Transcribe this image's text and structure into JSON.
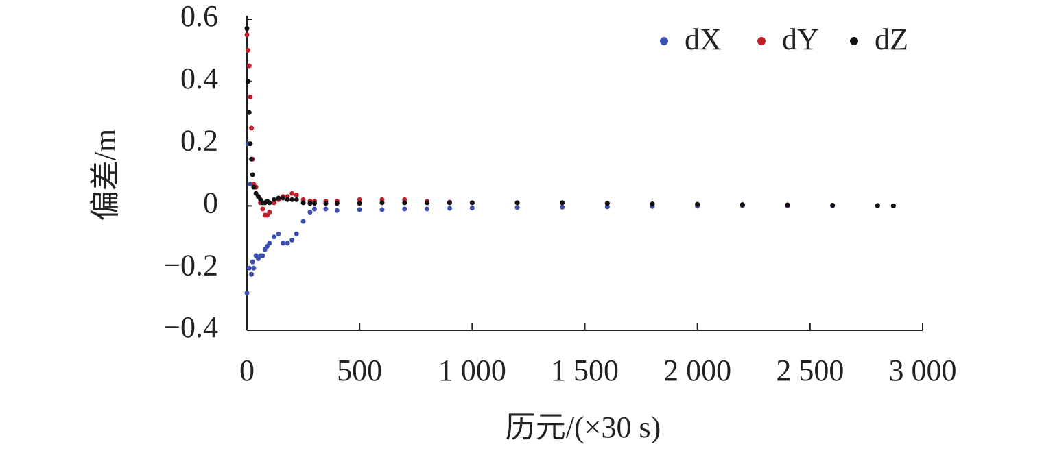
{
  "chart_data": {
    "type": "scatter",
    "x_label": "历元/(×30 s)",
    "y_label": "偏差/m",
    "xlim": [
      0,
      3000
    ],
    "ylim": [
      -0.4,
      0.6
    ],
    "xticks": [
      0,
      500,
      {
        "value": 1000,
        "label": "1 000"
      },
      {
        "value": 1500,
        "label": "1 500"
      },
      {
        "value": 2000,
        "label": "2 000"
      },
      {
        "value": 2500,
        "label": "2 500"
      },
      {
        "value": 3000,
        "label": "3 000"
      }
    ],
    "yticks": [
      {
        "value": -0.4,
        "label": "−0.4"
      },
      {
        "value": -0.2,
        "label": "−0.2"
      },
      0,
      0.2,
      0.4,
      0.6
    ],
    "grid": false,
    "legend": "upper right",
    "x": [
      0,
      5,
      10,
      15,
      20,
      25,
      30,
      40,
      50,
      60,
      70,
      80,
      90,
      100,
      120,
      140,
      160,
      180,
      200,
      220,
      250,
      280,
      300,
      350,
      400,
      500,
      600,
      700,
      800,
      900,
      1000,
      1200,
      1400,
      1600,
      1800,
      2000,
      2200,
      2400,
      2600,
      2800,
      2870
    ],
    "series": [
      {
        "name": "dX",
        "color": "#3b4fb0",
        "values": [
          -0.28,
          0.2,
          -0.2,
          0.07,
          -0.22,
          -0.18,
          -0.2,
          -0.16,
          -0.17,
          -0.16,
          -0.16,
          -0.14,
          -0.13,
          -0.12,
          -0.1,
          -0.09,
          -0.12,
          -0.12,
          -0.11,
          -0.09,
          -0.05,
          -0.02,
          -0.01,
          -0.01,
          -0.015,
          -0.012,
          -0.012,
          -0.01,
          -0.01,
          -0.008,
          -0.007,
          -0.005,
          -0.004,
          -0.003,
          -0.002,
          -0.001,
          0,
          0,
          0,
          0,
          0
        ]
      },
      {
        "name": "dY",
        "color": "#c0212e",
        "values": [
          0.55,
          0.5,
          0.45,
          0.35,
          0.25,
          0.15,
          0.07,
          0.06,
          0.03,
          0.01,
          -0.01,
          -0.03,
          -0.03,
          -0.02,
          0.01,
          0.02,
          0.03,
          0.03,
          0.04,
          0.035,
          0.02,
          0.015,
          0.015,
          0.015,
          0.015,
          0.02,
          0.02,
          0.02,
          0.015,
          0.012,
          0.01,
          0.01,
          0.01,
          0.008,
          0.006,
          0.004,
          0.003,
          0.002,
          0.002,
          0.001,
          0
        ]
      },
      {
        "name": "dZ",
        "color": "#111111",
        "values": [
          0.57,
          0.4,
          0.3,
          0.2,
          0.15,
          0.1,
          0.06,
          0.04,
          0.03,
          0.02,
          0.01,
          0.01,
          0.015,
          0.01,
          0.02,
          0.025,
          0.025,
          0.02,
          0.02,
          0.02,
          0.01,
          0.008,
          0.008,
          0.008,
          0.008,
          0.008,
          0.01,
          0.01,
          0.01,
          0.01,
          0.01,
          0.01,
          0.01,
          0.008,
          0.006,
          0.005,
          0.004,
          0.003,
          0.002,
          0.001,
          0
        ]
      }
    ]
  }
}
